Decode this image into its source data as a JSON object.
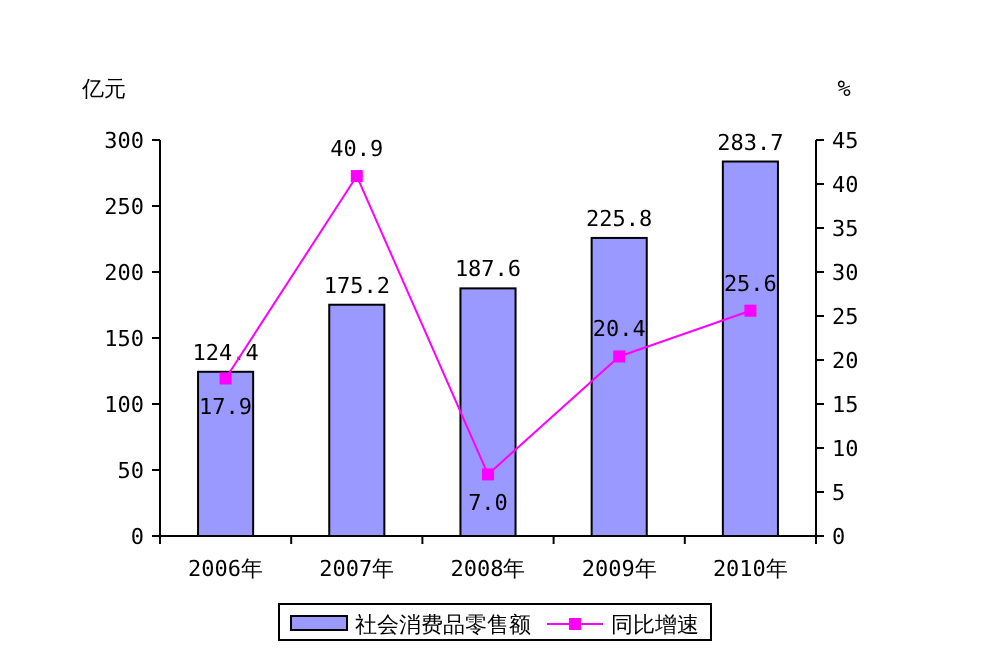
{
  "chart_data": {
    "type": "bar",
    "categories": [
      "2006年",
      "2007年",
      "2008年",
      "2009年",
      "2010年"
    ],
    "series": [
      {
        "name": "社会消费品零售额",
        "color": "#9999ff",
        "values": [
          124.4,
          175.2,
          187.6,
          225.8,
          283.7
        ]
      },
      {
        "name": "同比增速",
        "type": "line",
        "axis": "y2",
        "color": "#ff00ff",
        "marker": "square",
        "values": [
          17.9,
          40.9,
          7.0,
          20.4,
          25.6
        ],
        "value_labels": [
          "17.9",
          "40.9",
          "7.0",
          "20.4",
          "25.6"
        ]
      }
    ],
    "ylabel": "亿元",
    "y2label": "%",
    "ylim": [
      0,
      300
    ],
    "yticks": [
      0,
      50,
      100,
      150,
      200,
      250,
      300
    ],
    "y2lim": [
      0,
      45
    ],
    "y2ticks": [
      0,
      5,
      10,
      15,
      20,
      25,
      30,
      35,
      40,
      45
    ],
    "data_labels": true,
    "legend": "bottom",
    "grid": false
  }
}
